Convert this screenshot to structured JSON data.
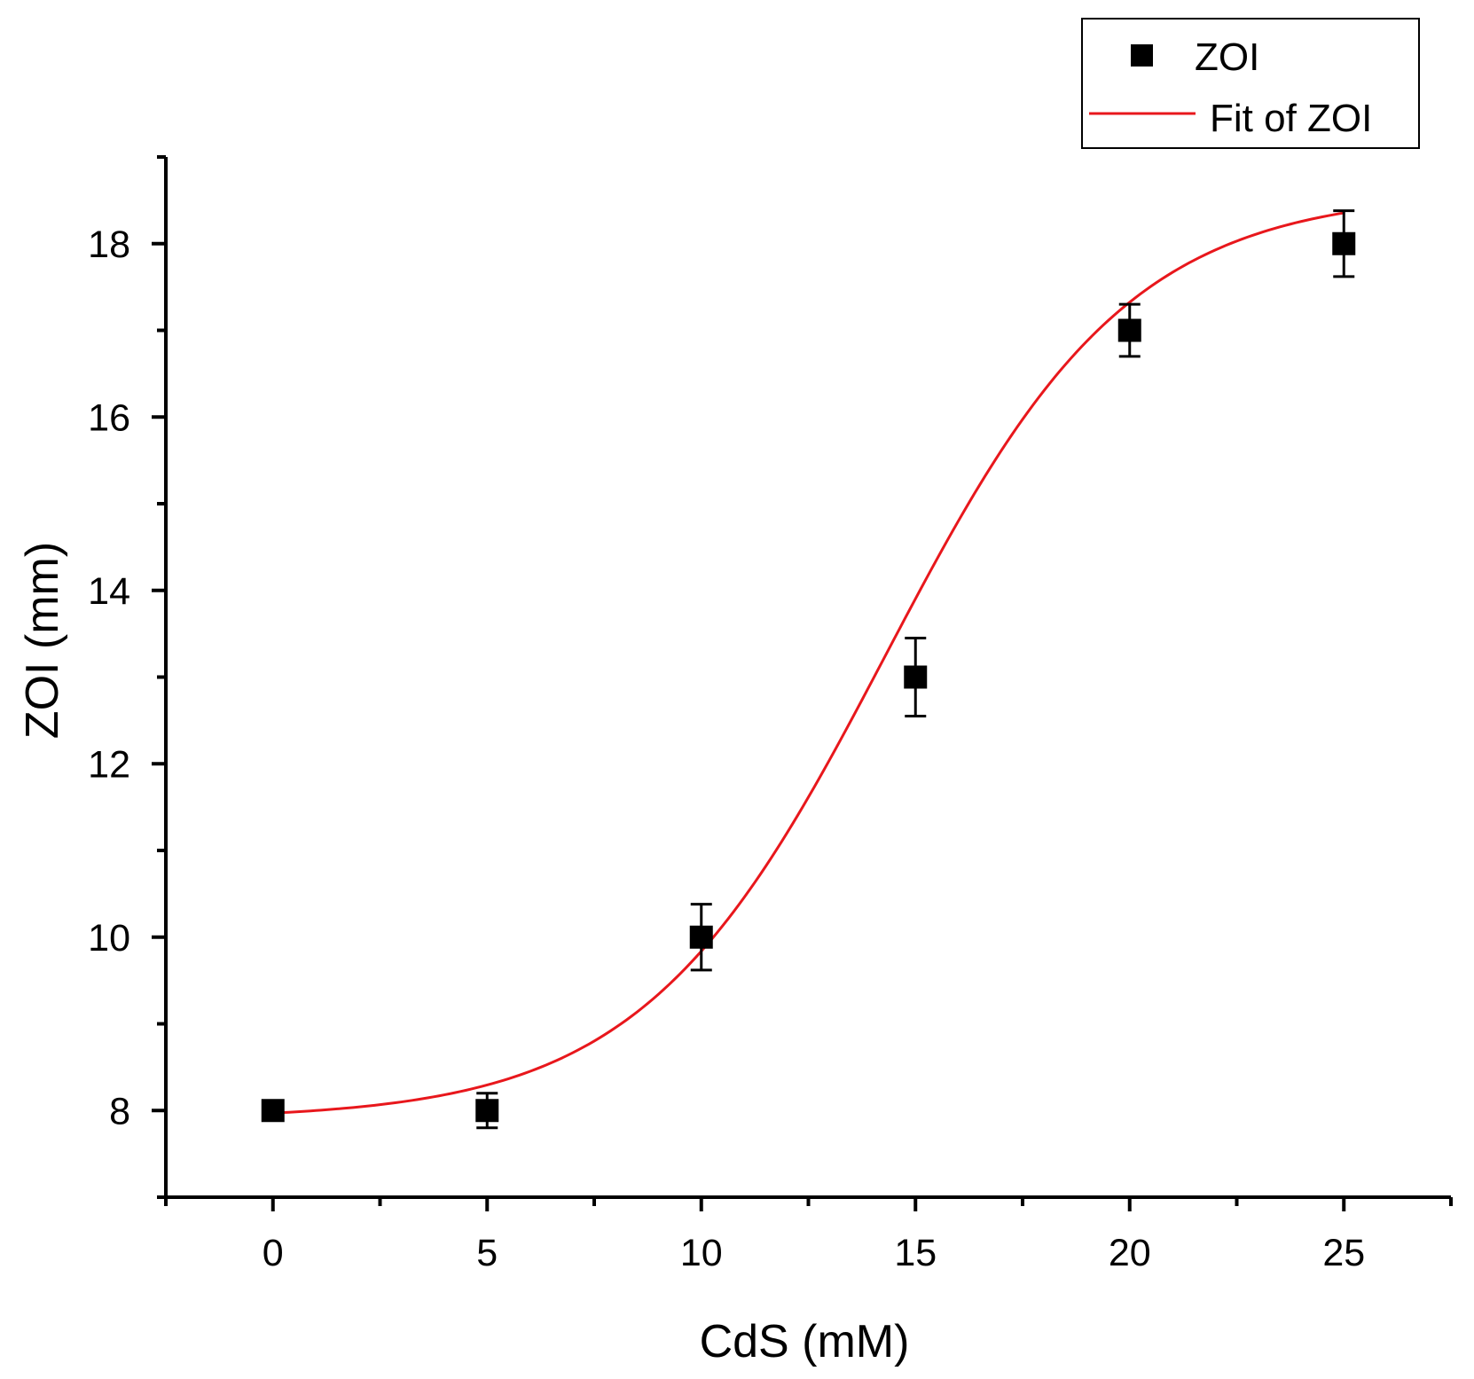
{
  "chart_data": {
    "type": "scatter",
    "title": "",
    "xlabel": "CdS (mM)",
    "ylabel": "ZOI (mm)",
    "xlim": [
      -2.5,
      27.5
    ],
    "ylim": [
      7,
      19
    ],
    "x_ticks": [
      0,
      5,
      10,
      15,
      20,
      25
    ],
    "x_tick_labels": [
      "0",
      "5",
      "10",
      "15",
      "20",
      "25"
    ],
    "y_ticks": [
      8,
      10,
      12,
      14,
      16,
      18
    ],
    "y_tick_labels": [
      "8",
      "10",
      "12",
      "14",
      "16",
      "18"
    ],
    "grid": false,
    "legend_position": "top-right",
    "series": [
      {
        "name": "ZOI",
        "kind": "scatter",
        "marker": "square",
        "color": "#000000",
        "x": [
          0,
          5,
          10,
          15,
          20,
          25
        ],
        "y": [
          8,
          8,
          10,
          13,
          17,
          18
        ],
        "error": [
          0.0,
          0.2,
          0.38,
          0.45,
          0.3,
          0.38
        ]
      },
      {
        "name": "Fit of ZOI",
        "kind": "line",
        "color": "#e8171c",
        "model": "Boltzmann",
        "params": {
          "A1": 7.9,
          "A2": 18.6,
          "x0": 14.3,
          "dx": 2.85
        },
        "x_range": [
          0,
          25
        ]
      }
    ]
  }
}
